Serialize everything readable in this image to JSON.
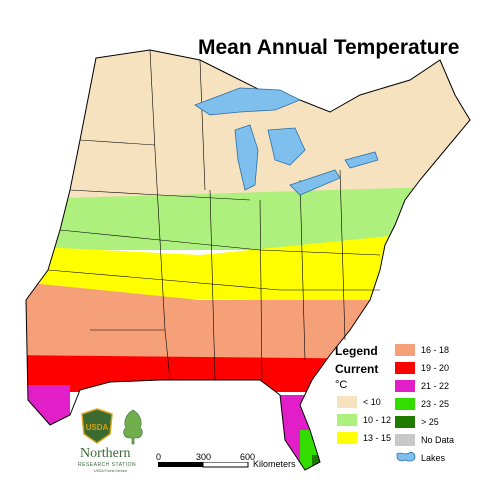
{
  "title": "Mean Annual Temperature",
  "legend": {
    "title": "Legend",
    "subtitle": "Current",
    "unit": "°C",
    "classes": [
      {
        "label": "< 10",
        "color": "#f6e2be"
      },
      {
        "label": "10 - 12",
        "color": "#aef07e"
      },
      {
        "label": "13 - 15",
        "color": "#ffff00"
      },
      {
        "label": "16 - 18",
        "color": "#f6a07a"
      },
      {
        "label": "19 - 20",
        "color": "#ff0000"
      },
      {
        "label": "21 - 22",
        "color": "#e21ec8"
      },
      {
        "label": "23 - 25",
        "color": "#33dd00"
      },
      {
        "label": "> 25",
        "color": "#217a00"
      }
    ],
    "no_data": {
      "label": "No Data",
      "color": "#c8c8c8"
    },
    "lakes": {
      "label": "Lakes",
      "color": "#7fbfee"
    }
  },
  "scalebar": {
    "ticks": [
      "0",
      "300",
      "600"
    ],
    "unit": "Kilometers"
  },
  "organization": {
    "name": "Northern",
    "sub": "RESEARCH STATION",
    "agency": "USDA Forest Service",
    "logo_text": "USDA"
  },
  "colors": {
    "border": "#000000",
    "background": "#ffffff"
  }
}
